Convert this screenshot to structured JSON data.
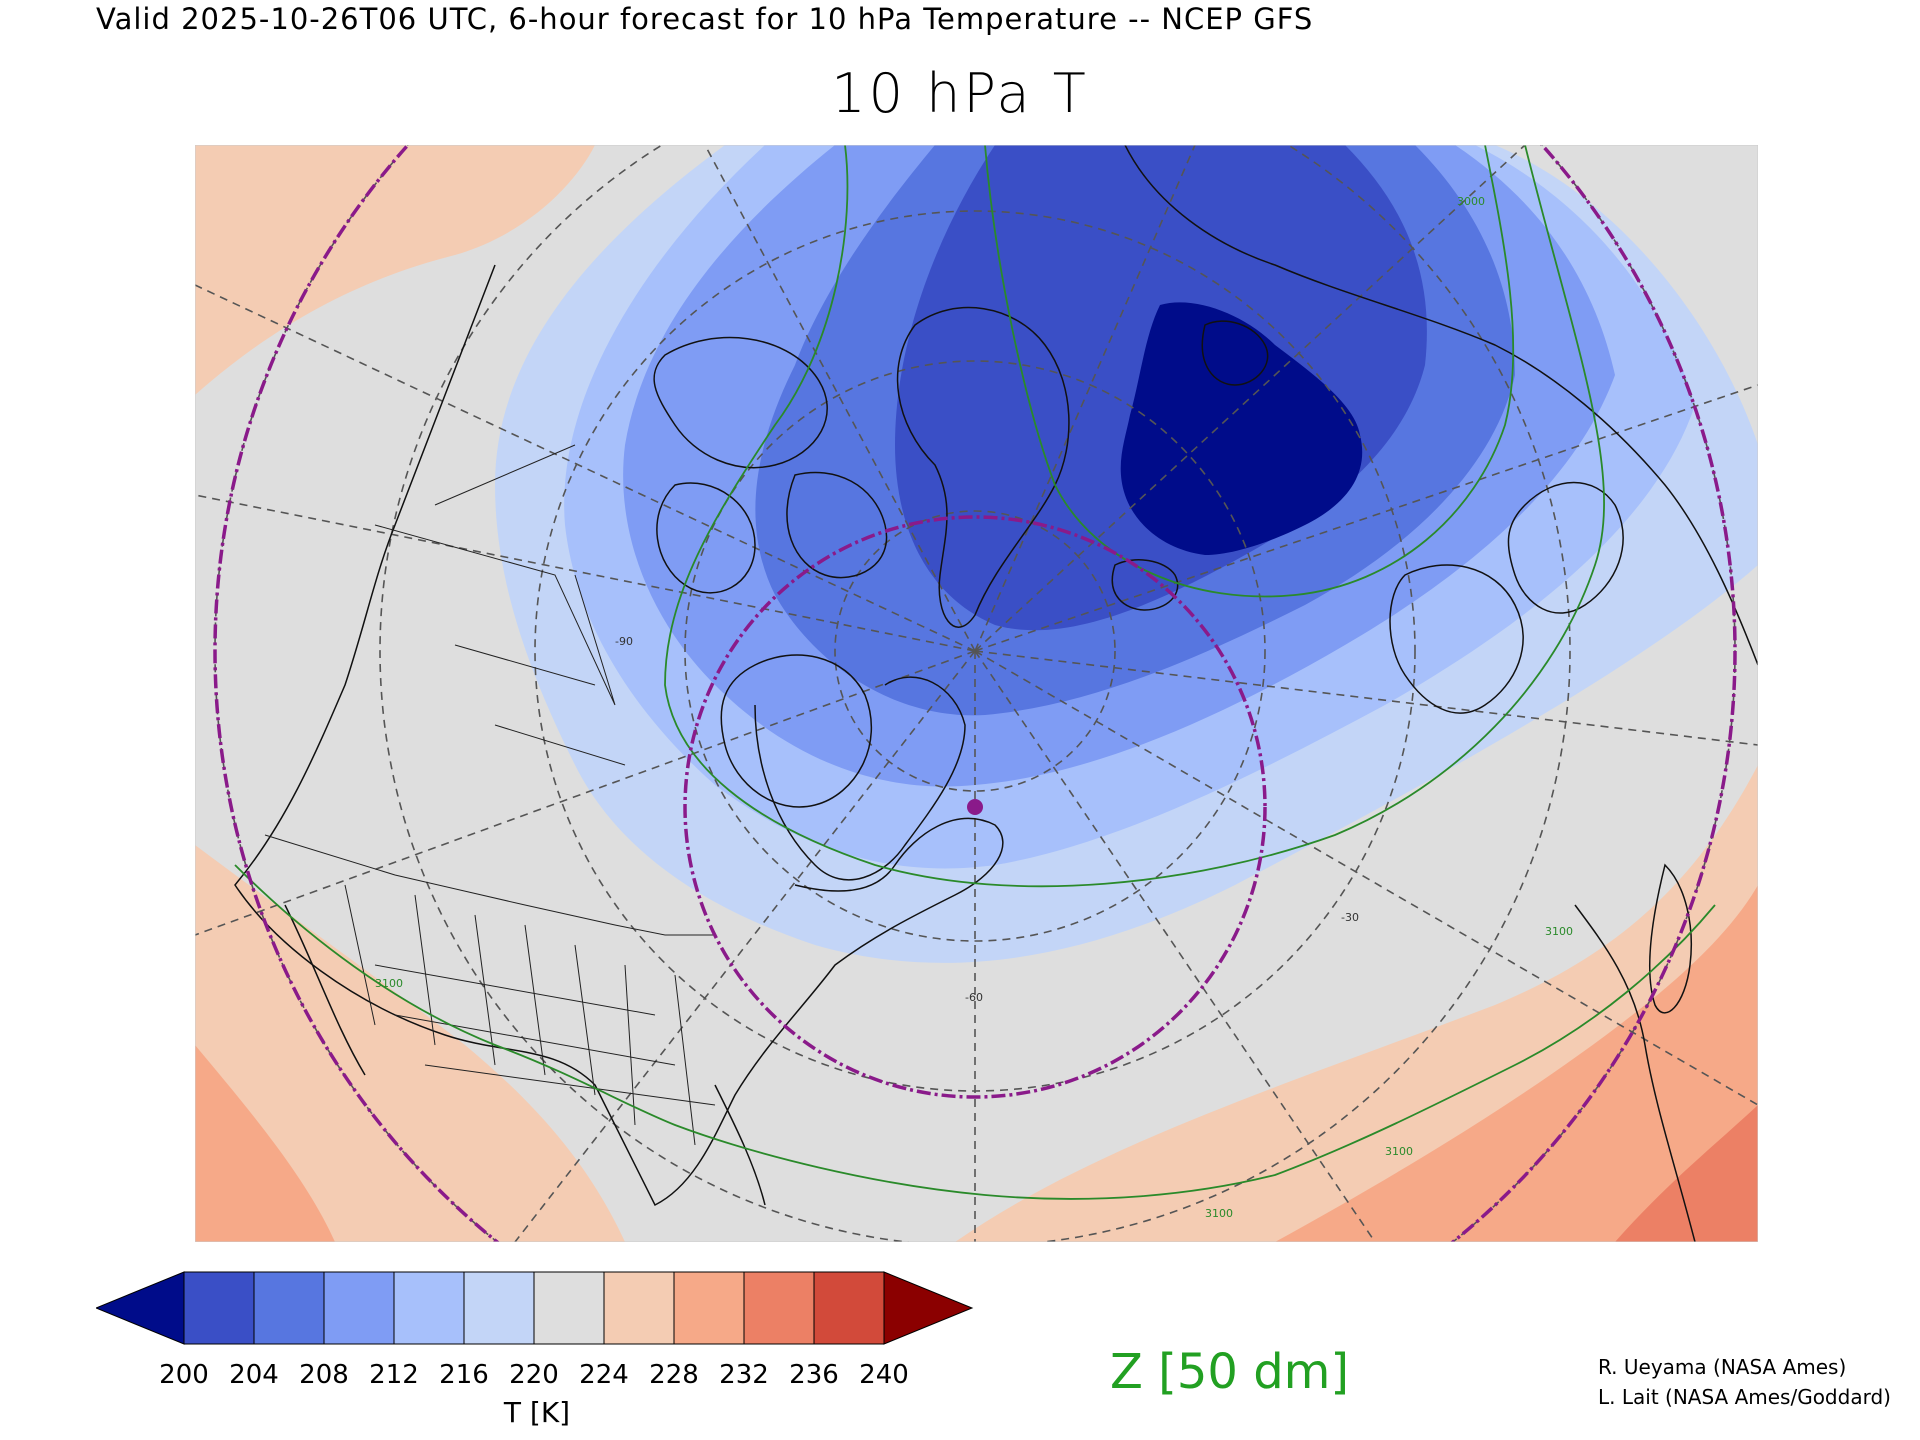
{
  "header": "Valid 2025-10-26T06 UTC, 6-hour forecast for 10 hPa Temperature -- NCEP GFS",
  "title": "10 hPa T",
  "colorbar": {
    "ticks": [
      "200",
      "204",
      "208",
      "212",
      "216",
      "220",
      "224",
      "228",
      "232",
      "236",
      "240"
    ],
    "colors": [
      "#000c8a",
      "#3a4fc6",
      "#5776e0",
      "#7f9cf4",
      "#a7c0fb",
      "#c3d5f7",
      "#dedede",
      "#f4ccb3",
      "#f6a988",
      "#ec8065",
      "#d24a3a",
      "#8b0000"
    ],
    "unit": "T [K]"
  },
  "contour_legend": "Z [50 dm]",
  "contour_labels": [
    "3100",
    "3100",
    "3100",
    "3100",
    "3000"
  ],
  "meridian_labels": [
    "-30",
    "-60",
    "-90"
  ],
  "credits": [
    "R. Ueyama (NASA Ames)",
    "L. Lait (NASA Ames/Goddard)"
  ]
}
